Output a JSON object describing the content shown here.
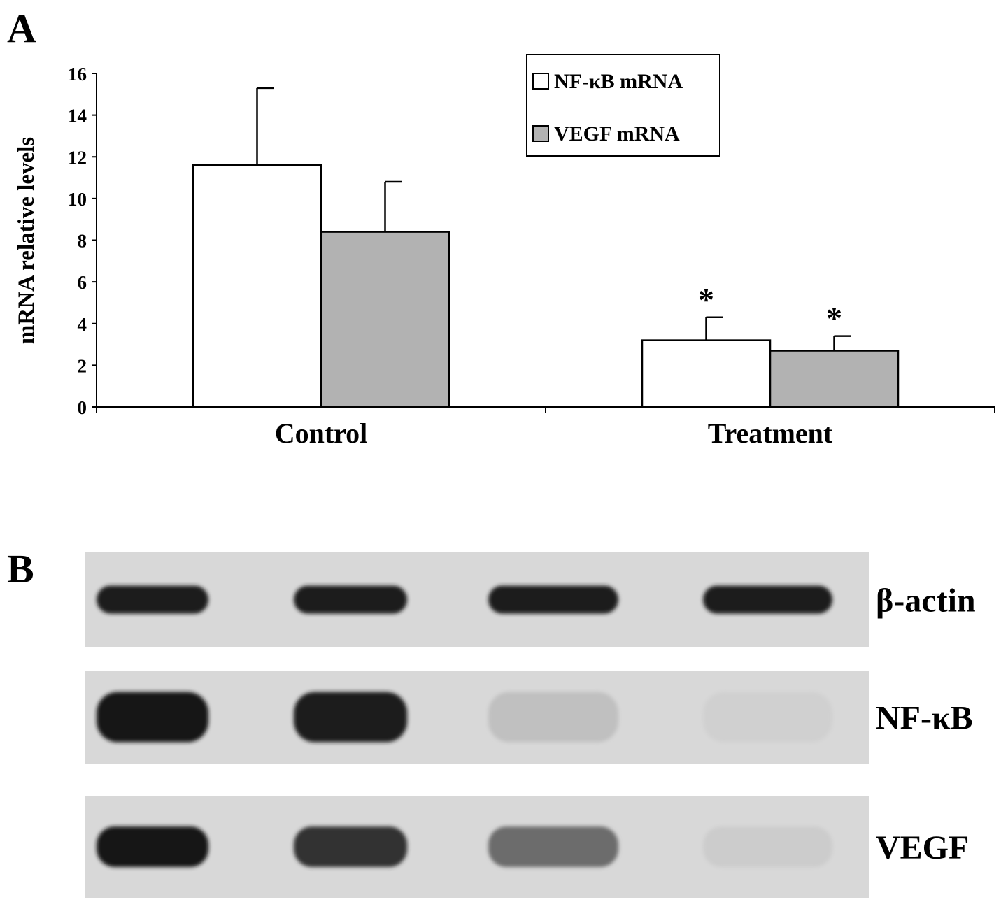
{
  "panel_a_label": "A",
  "panel_b_label": "B",
  "chart_data": {
    "type": "bar",
    "title": "",
    "xlabel": "",
    "ylabel": "mRNA relative levels",
    "ylim": [
      0,
      16
    ],
    "yticks": [
      0,
      2,
      4,
      6,
      8,
      10,
      12,
      14,
      16
    ],
    "categories": [
      "Control",
      "Treatment"
    ],
    "series": [
      {
        "name": "NF-κB mRNA",
        "values": [
          11.6,
          3.2
        ],
        "errors": [
          3.7,
          1.1
        ],
        "color": "#ffffff"
      },
      {
        "name": "VEGF mRNA",
        "values": [
          8.4,
          2.7
        ],
        "errors": [
          2.4,
          0.7
        ],
        "color": "#b2b2b2"
      }
    ],
    "annotations": [
      {
        "text": "*",
        "category": "Treatment",
        "series": "NF-κB mRNA"
      },
      {
        "text": "*",
        "category": "Treatment",
        "series": "VEGF mRNA"
      }
    ],
    "legend": "top-right",
    "grid": false
  },
  "gel": {
    "rows": [
      {
        "label": "β-actin",
        "intensities": [
          0.95,
          0.95,
          0.97,
          0.95
        ]
      },
      {
        "label": "NF-κB",
        "intensities": [
          1.0,
          0.97,
          0.12,
          0.04
        ]
      },
      {
        "label": "VEGF",
        "intensities": [
          1.0,
          0.85,
          0.55,
          0.06
        ]
      }
    ]
  }
}
